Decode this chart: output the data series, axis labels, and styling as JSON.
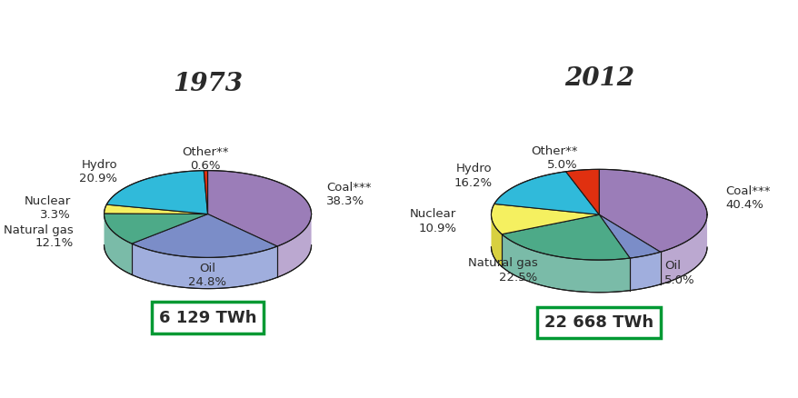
{
  "chart1": {
    "title": "1973",
    "total": "6 129 TWh",
    "slices": [
      {
        "label": "Coal***",
        "pct": 38.3,
        "color": "#9B7DB8",
        "side_color": "#BBA8D0"
      },
      {
        "label": "Oil",
        "pct": 24.8,
        "color": "#7B8DC8",
        "side_color": "#A0AEDD"
      },
      {
        "label": "Natural gas",
        "pct": 12.1,
        "color": "#4DAA88",
        "side_color": "#7ABBA8"
      },
      {
        "label": "Nuclear",
        "pct": 3.3,
        "color": "#F5F060",
        "side_color": "#D8D040"
      },
      {
        "label": "Hydro",
        "pct": 20.9,
        "color": "#30BADA",
        "side_color": "#50AACC"
      },
      {
        "label": "Other**",
        "pct": 0.6,
        "color": "#E03010",
        "side_color": "#C02808"
      }
    ]
  },
  "chart2": {
    "title": "2012",
    "total": "22 668 TWh",
    "slices": [
      {
        "label": "Coal***",
        "pct": 40.4,
        "color": "#9B7DB8",
        "side_color": "#BBA8D0"
      },
      {
        "label": "Oil",
        "pct": 5.0,
        "color": "#7B8DC8",
        "side_color": "#A0AEDD"
      },
      {
        "label": "Natural gas",
        "pct": 22.5,
        "color": "#4DAA88",
        "side_color": "#7ABBA8"
      },
      {
        "label": "Nuclear",
        "pct": 10.9,
        "color": "#F5F060",
        "side_color": "#D8D040"
      },
      {
        "label": "Hydro",
        "pct": 16.2,
        "color": "#30BADA",
        "side_color": "#50AACC"
      },
      {
        "label": "Other**",
        "pct": 5.0,
        "color": "#E03010",
        "side_color": "#C02808"
      }
    ]
  },
  "bg_color": "#FFFFFF",
  "text_color": "#2A2A2A",
  "box_color": "#009933",
  "title_fontsize": 20,
  "label_fontsize": 9.5,
  "total_fontsize": 13
}
